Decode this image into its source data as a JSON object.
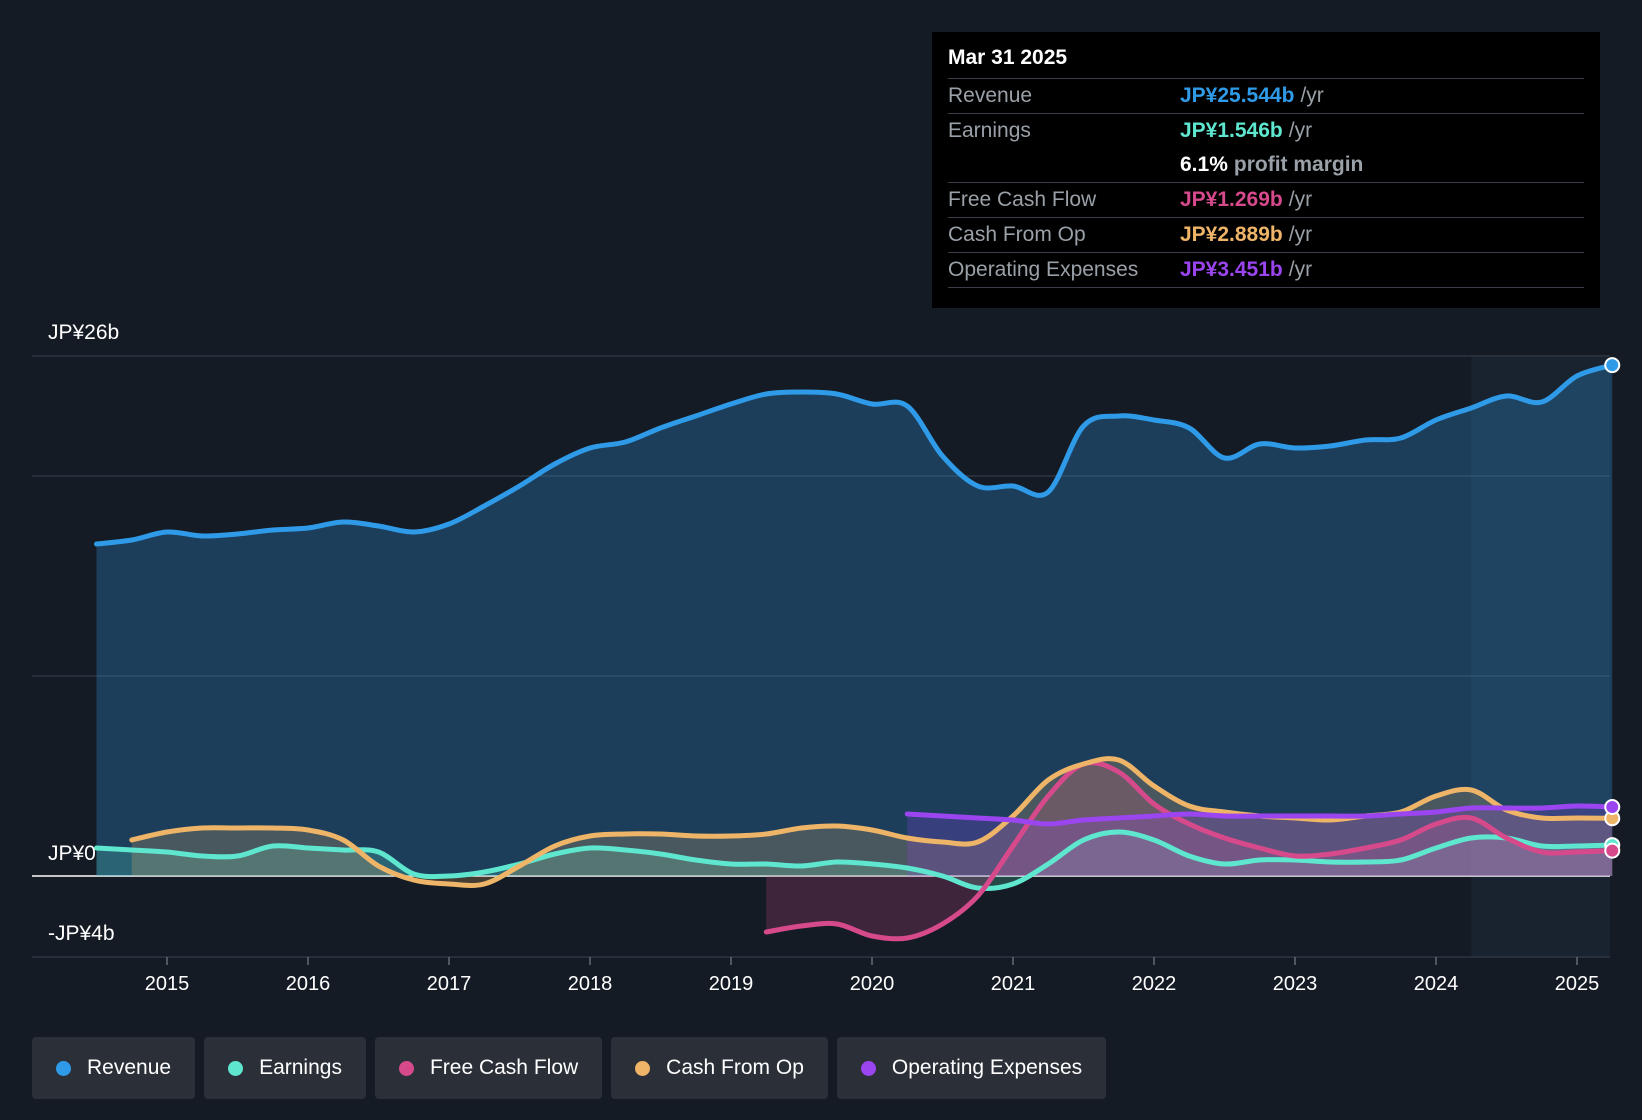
{
  "colors": {
    "revenue": "#2f9be8",
    "earnings": "#5ee6cf",
    "fcf": "#d64a8c",
    "cfo": "#eeb467",
    "opex": "#9b45f0"
  },
  "tooltip": {
    "date": "Mar 31 2025",
    "rows": [
      {
        "label": "Revenue",
        "value": "JP¥25.544b",
        "unit": "/yr"
      },
      {
        "label": "Earnings",
        "value": "JP¥1.546b",
        "unit": "/yr"
      },
      {
        "margin_value": "6.1%",
        "margin_text": "profit margin"
      },
      {
        "label": "Free Cash Flow",
        "value": "JP¥1.269b",
        "unit": "/yr"
      },
      {
        "label": "Cash From Op",
        "value": "JP¥2.889b",
        "unit": "/yr"
      },
      {
        "label": "Operating Expenses",
        "value": "JP¥3.451b",
        "unit": "/yr"
      }
    ]
  },
  "legend": [
    {
      "label": "Revenue",
      "key": "revenue"
    },
    {
      "label": "Earnings",
      "key": "earnings"
    },
    {
      "label": "Free Cash Flow",
      "key": "fcf"
    },
    {
      "label": "Cash From Op",
      "key": "cfo"
    },
    {
      "label": "Operating Expenses",
      "key": "opex"
    }
  ],
  "chart_data": {
    "type": "line",
    "title": "",
    "ylabels": {
      "top": "JP¥26b",
      "zero": "JP¥0",
      "bottom": "-JP¥4b"
    },
    "ylim": [
      -4,
      26
    ],
    "xlim": [
      2014.0,
      2025.25
    ],
    "xticks": [
      {
        "value": 2015,
        "label": "2015"
      },
      {
        "value": 2016,
        "label": "2016"
      },
      {
        "value": 2017,
        "label": "2017"
      },
      {
        "value": 2018,
        "label": "2018"
      },
      {
        "value": 2019,
        "label": "2019"
      },
      {
        "value": 2020,
        "label": "2020"
      },
      {
        "value": 2021,
        "label": "2021"
      },
      {
        "value": 2022,
        "label": "2022"
      },
      {
        "value": 2023,
        "label": "2023"
      },
      {
        "value": 2024,
        "label": "2024"
      },
      {
        "value": 2025,
        "label": "2025"
      }
    ],
    "highlight_from": 2024.25,
    "series": [
      {
        "name": "Revenue",
        "key": "revenue",
        "points": [
          [
            2014.5,
            16.6
          ],
          [
            2014.75,
            16.8
          ],
          [
            2015.0,
            17.2
          ],
          [
            2015.25,
            17.0
          ],
          [
            2015.5,
            17.1
          ],
          [
            2015.75,
            17.3
          ],
          [
            2016.0,
            17.4
          ],
          [
            2016.25,
            17.7
          ],
          [
            2016.5,
            17.5
          ],
          [
            2016.75,
            17.2
          ],
          [
            2017.0,
            17.6
          ],
          [
            2017.25,
            18.5
          ],
          [
            2017.5,
            19.5
          ],
          [
            2017.75,
            20.6
          ],
          [
            2018.0,
            21.4
          ],
          [
            2018.25,
            21.7
          ],
          [
            2018.5,
            22.4
          ],
          [
            2018.75,
            23.0
          ],
          [
            2019.0,
            23.6
          ],
          [
            2019.25,
            24.1
          ],
          [
            2019.5,
            24.2
          ],
          [
            2019.75,
            24.1
          ],
          [
            2020.0,
            23.6
          ],
          [
            2020.25,
            23.5
          ],
          [
            2020.5,
            21.0
          ],
          [
            2020.75,
            19.5
          ],
          [
            2021.0,
            19.5
          ],
          [
            2021.25,
            19.2
          ],
          [
            2021.5,
            22.5
          ],
          [
            2021.75,
            23.0
          ],
          [
            2022.0,
            22.8
          ],
          [
            2022.25,
            22.4
          ],
          [
            2022.5,
            20.9
          ],
          [
            2022.75,
            21.6
          ],
          [
            2023.0,
            21.4
          ],
          [
            2023.25,
            21.5
          ],
          [
            2023.5,
            21.8
          ],
          [
            2023.75,
            21.9
          ],
          [
            2024.0,
            22.8
          ],
          [
            2024.25,
            23.4
          ],
          [
            2024.5,
            24.0
          ],
          [
            2024.75,
            23.7
          ],
          [
            2025.0,
            25.0
          ],
          [
            2025.25,
            25.544
          ]
        ]
      },
      {
        "name": "Earnings",
        "key": "earnings",
        "points": [
          [
            2014.5,
            1.4
          ],
          [
            2014.75,
            1.3
          ],
          [
            2015.0,
            1.2
          ],
          [
            2015.25,
            1.0
          ],
          [
            2015.5,
            1.0
          ],
          [
            2015.75,
            1.5
          ],
          [
            2016.0,
            1.4
          ],
          [
            2016.25,
            1.3
          ],
          [
            2016.5,
            1.2
          ],
          [
            2016.75,
            0.1
          ],
          [
            2017.0,
            0.0
          ],
          [
            2017.25,
            0.2
          ],
          [
            2017.5,
            0.6
          ],
          [
            2017.75,
            1.1
          ],
          [
            2018.0,
            1.4
          ],
          [
            2018.25,
            1.3
          ],
          [
            2018.5,
            1.1
          ],
          [
            2018.75,
            0.8
          ],
          [
            2019.0,
            0.6
          ],
          [
            2019.25,
            0.6
          ],
          [
            2019.5,
            0.5
          ],
          [
            2019.75,
            0.7
          ],
          [
            2020.0,
            0.6
          ],
          [
            2020.25,
            0.4
          ],
          [
            2020.5,
            0.0
          ],
          [
            2020.75,
            -0.6
          ],
          [
            2021.0,
            -0.4
          ],
          [
            2021.25,
            0.6
          ],
          [
            2021.5,
            1.8
          ],
          [
            2021.75,
            2.2
          ],
          [
            2022.0,
            1.8
          ],
          [
            2022.25,
            1.0
          ],
          [
            2022.5,
            0.6
          ],
          [
            2022.75,
            0.8
          ],
          [
            2023.0,
            0.8
          ],
          [
            2023.25,
            0.7
          ],
          [
            2023.5,
            0.7
          ],
          [
            2023.75,
            0.8
          ],
          [
            2024.0,
            1.4
          ],
          [
            2024.25,
            1.9
          ],
          [
            2024.5,
            1.9
          ],
          [
            2024.75,
            1.5
          ],
          [
            2025.0,
            1.5
          ],
          [
            2025.25,
            1.546
          ]
        ]
      },
      {
        "name": "Free Cash Flow",
        "key": "fcf",
        "points": [
          [
            2019.25,
            -2.8
          ],
          [
            2019.5,
            -2.5
          ],
          [
            2019.75,
            -2.4
          ],
          [
            2020.0,
            -3.0
          ],
          [
            2020.25,
            -3.1
          ],
          [
            2020.5,
            -2.4
          ],
          [
            2020.75,
            -1.0
          ],
          [
            2021.0,
            1.5
          ],
          [
            2021.25,
            4.0
          ],
          [
            2021.5,
            5.6
          ],
          [
            2021.75,
            5.2
          ],
          [
            2022.0,
            3.6
          ],
          [
            2022.25,
            2.6
          ],
          [
            2022.5,
            1.9
          ],
          [
            2022.75,
            1.4
          ],
          [
            2023.0,
            1.0
          ],
          [
            2023.25,
            1.1
          ],
          [
            2023.5,
            1.4
          ],
          [
            2023.75,
            1.8
          ],
          [
            2024.0,
            2.6
          ],
          [
            2024.25,
            2.9
          ],
          [
            2024.5,
            1.9
          ],
          [
            2024.75,
            1.2
          ],
          [
            2025.0,
            1.2
          ],
          [
            2025.25,
            1.269
          ]
        ]
      },
      {
        "name": "Cash From Op",
        "key": "cfo",
        "points": [
          [
            2014.75,
            1.8
          ],
          [
            2015.0,
            2.2
          ],
          [
            2015.25,
            2.4
          ],
          [
            2015.5,
            2.4
          ],
          [
            2015.75,
            2.4
          ],
          [
            2016.0,
            2.3
          ],
          [
            2016.25,
            1.8
          ],
          [
            2016.5,
            0.5
          ],
          [
            2016.75,
            -0.2
          ],
          [
            2017.0,
            -0.4
          ],
          [
            2017.25,
            -0.4
          ],
          [
            2017.5,
            0.5
          ],
          [
            2017.75,
            1.5
          ],
          [
            2018.0,
            2.0
          ],
          [
            2018.25,
            2.1
          ],
          [
            2018.5,
            2.1
          ],
          [
            2018.75,
            2.0
          ],
          [
            2019.0,
            2.0
          ],
          [
            2019.25,
            2.1
          ],
          [
            2019.5,
            2.4
          ],
          [
            2019.75,
            2.5
          ],
          [
            2020.0,
            2.3
          ],
          [
            2020.25,
            1.9
          ],
          [
            2020.5,
            1.7
          ],
          [
            2020.75,
            1.7
          ],
          [
            2021.0,
            3.0
          ],
          [
            2021.25,
            4.8
          ],
          [
            2021.5,
            5.6
          ],
          [
            2021.75,
            5.8
          ],
          [
            2022.0,
            4.5
          ],
          [
            2022.25,
            3.5
          ],
          [
            2022.5,
            3.2
          ],
          [
            2022.75,
            3.0
          ],
          [
            2023.0,
            2.9
          ],
          [
            2023.25,
            2.8
          ],
          [
            2023.5,
            3.0
          ],
          [
            2023.75,
            3.2
          ],
          [
            2024.0,
            4.0
          ],
          [
            2024.25,
            4.3
          ],
          [
            2024.5,
            3.3
          ],
          [
            2024.75,
            2.9
          ],
          [
            2025.0,
            2.9
          ],
          [
            2025.25,
            2.889
          ]
        ]
      },
      {
        "name": "Operating Expenses",
        "key": "opex",
        "points": [
          [
            2020.25,
            3.1
          ],
          [
            2020.5,
            3.0
          ],
          [
            2020.75,
            2.9
          ],
          [
            2021.0,
            2.8
          ],
          [
            2021.25,
            2.6
          ],
          [
            2021.5,
            2.8
          ],
          [
            2021.75,
            2.9
          ],
          [
            2022.0,
            3.0
          ],
          [
            2022.25,
            3.1
          ],
          [
            2022.5,
            3.0
          ],
          [
            2022.75,
            3.0
          ],
          [
            2023.0,
            3.0
          ],
          [
            2023.25,
            3.0
          ],
          [
            2023.5,
            3.0
          ],
          [
            2023.75,
            3.1
          ],
          [
            2024.0,
            3.2
          ],
          [
            2024.25,
            3.4
          ],
          [
            2024.5,
            3.4
          ],
          [
            2024.75,
            3.4
          ],
          [
            2025.0,
            3.5
          ],
          [
            2025.25,
            3.451
          ]
        ]
      }
    ]
  }
}
